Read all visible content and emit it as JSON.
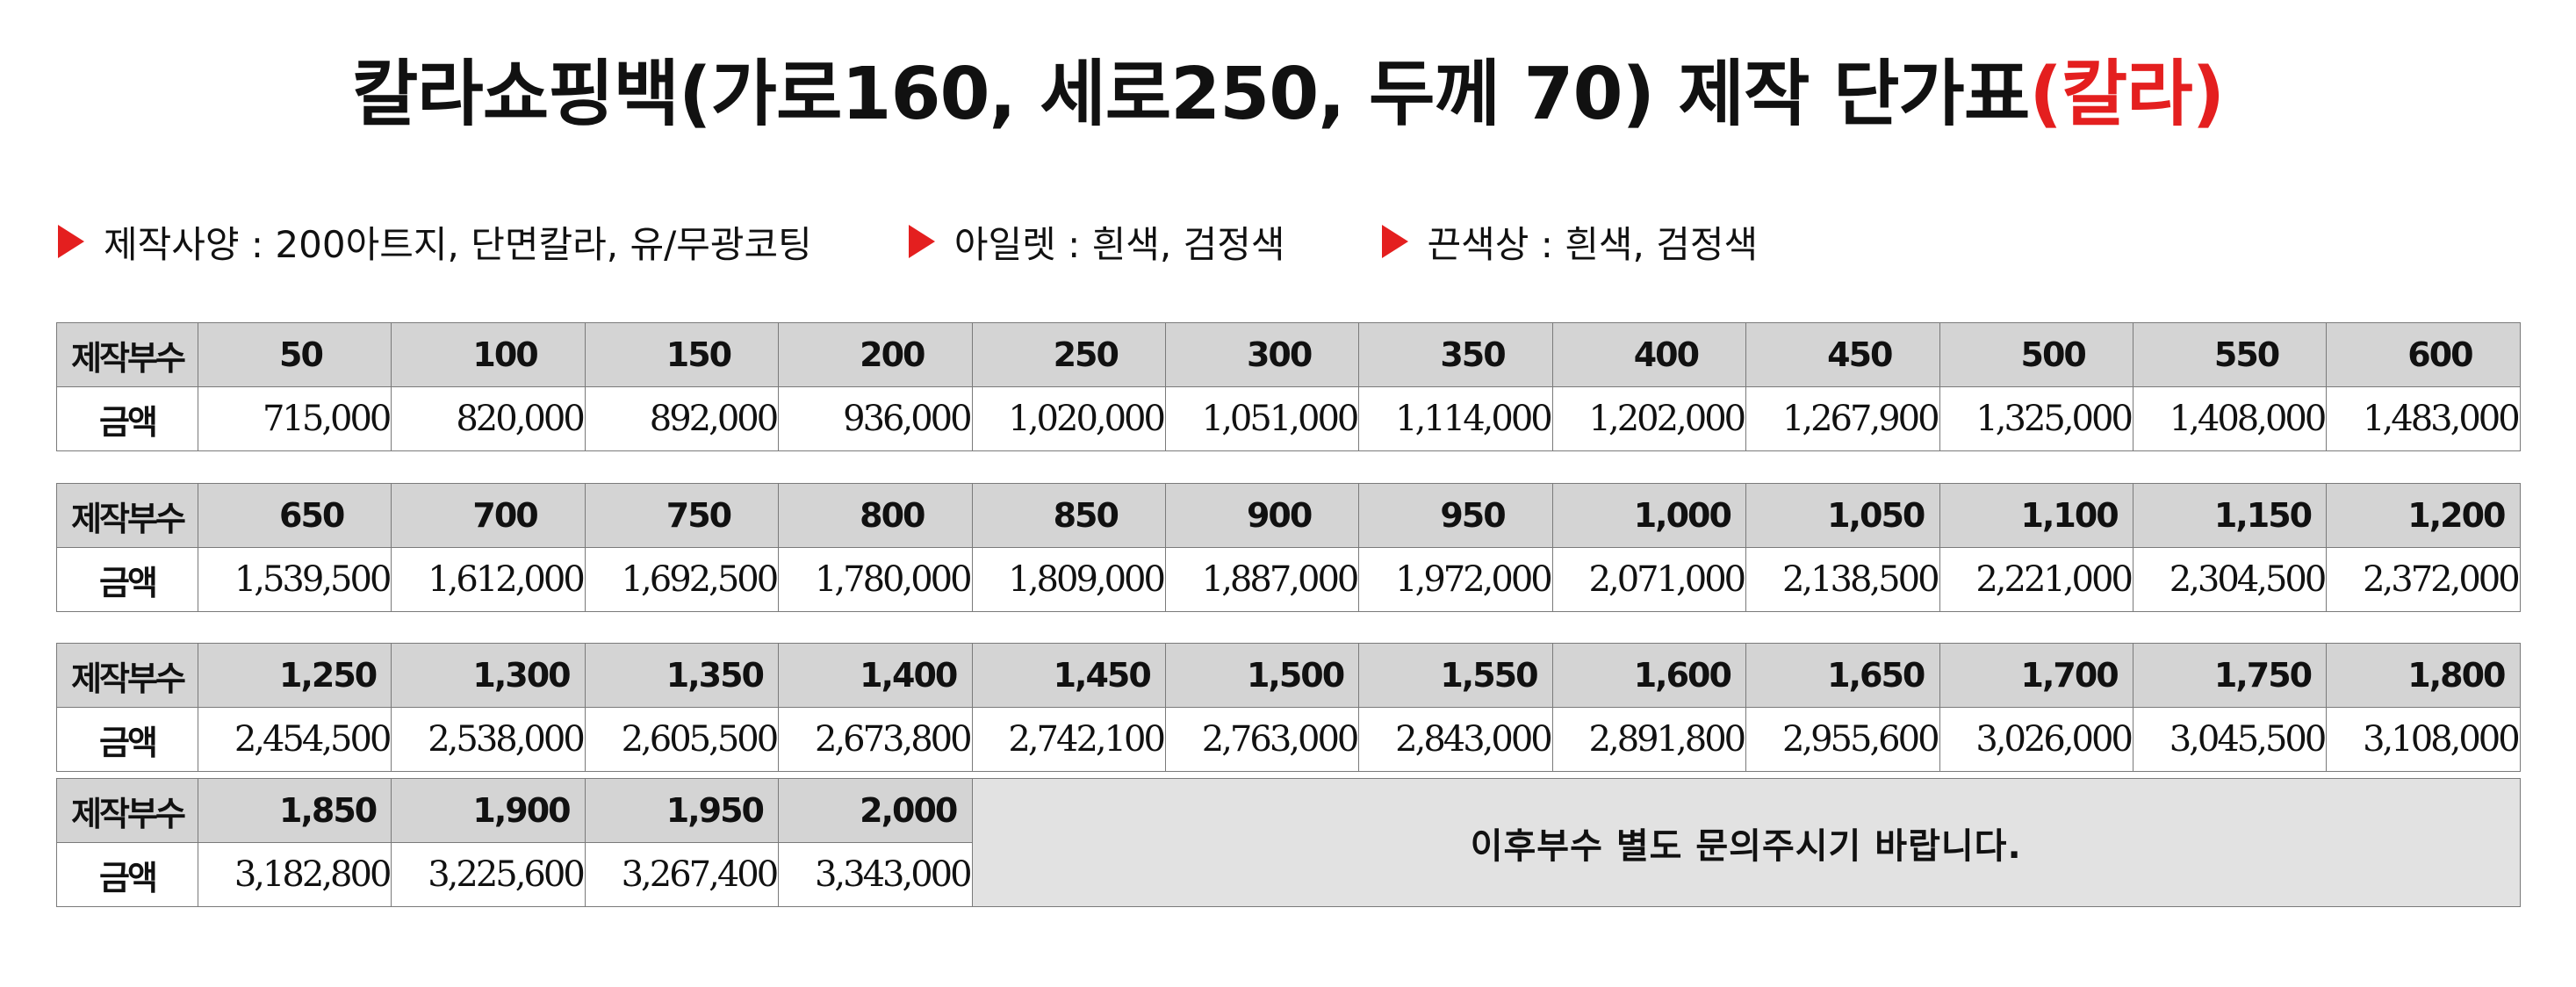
{
  "title": {
    "main": "칼라쇼핑백(가로160, 세로250, 두께 70) 제작 단가표",
    "highlight": "(칼라)",
    "highlight_color": "#e41f1f"
  },
  "specs": [
    {
      "icon": "red-triangle-icon",
      "text": "제작사양 : 200아트지, 단면칼라, 유/무광코팅"
    },
    {
      "icon": "red-triangle-icon",
      "text": "아일렛 : 흰색, 검정색"
    },
    {
      "icon": "red-triangle-icon",
      "text": "끈색상 : 흰색, 검정색"
    }
  ],
  "row_labels": {
    "quantity": "제작부수",
    "price": "금액"
  },
  "blocks": [
    {
      "quantities": [
        "50",
        "100",
        "150",
        "200",
        "250",
        "300",
        "350",
        "400",
        "450",
        "500",
        "550",
        "600"
      ],
      "prices": [
        "715,000",
        "820,000",
        "892,000",
        "936,000",
        "1,020,000",
        "1,051,000",
        "1,114,000",
        "1,202,000",
        "1,267,900",
        "1,325,000",
        "1,408,000",
        "1,483,000"
      ]
    },
    {
      "quantities": [
        "650",
        "700",
        "750",
        "800",
        "850",
        "900",
        "950",
        "1,000",
        "1,050",
        "1,100",
        "1,150",
        "1,200"
      ],
      "prices": [
        "1,539,500",
        "1,612,000",
        "1,692,500",
        "1,780,000",
        "1,809,000",
        "1,887,000",
        "1,972,000",
        "2,071,000",
        "2,138,500",
        "2,221,000",
        "2,304,500",
        "2,372,000"
      ]
    },
    {
      "quantities": [
        "1,250",
        "1,300",
        "1,350",
        "1,400",
        "1,450",
        "1,500",
        "1,550",
        "1,600",
        "1,650",
        "1,700",
        "1,750",
        "1,800"
      ],
      "prices": [
        "2,454,500",
        "2,538,000",
        "2,605,500",
        "2,673,800",
        "2,742,100",
        "2,763,000",
        "2,843,000",
        "2,891,800",
        "2,955,600",
        "3,026,000",
        "3,045,500",
        "3,108,000"
      ]
    },
    {
      "quantities": [
        "1,850",
        "1,900",
        "1,950",
        "2,000"
      ],
      "prices": [
        "3,182,800",
        "3,225,600",
        "3,267,400",
        "3,343,000"
      ]
    }
  ],
  "note": "이후부수 별도 문의주시기 바랍니다."
}
